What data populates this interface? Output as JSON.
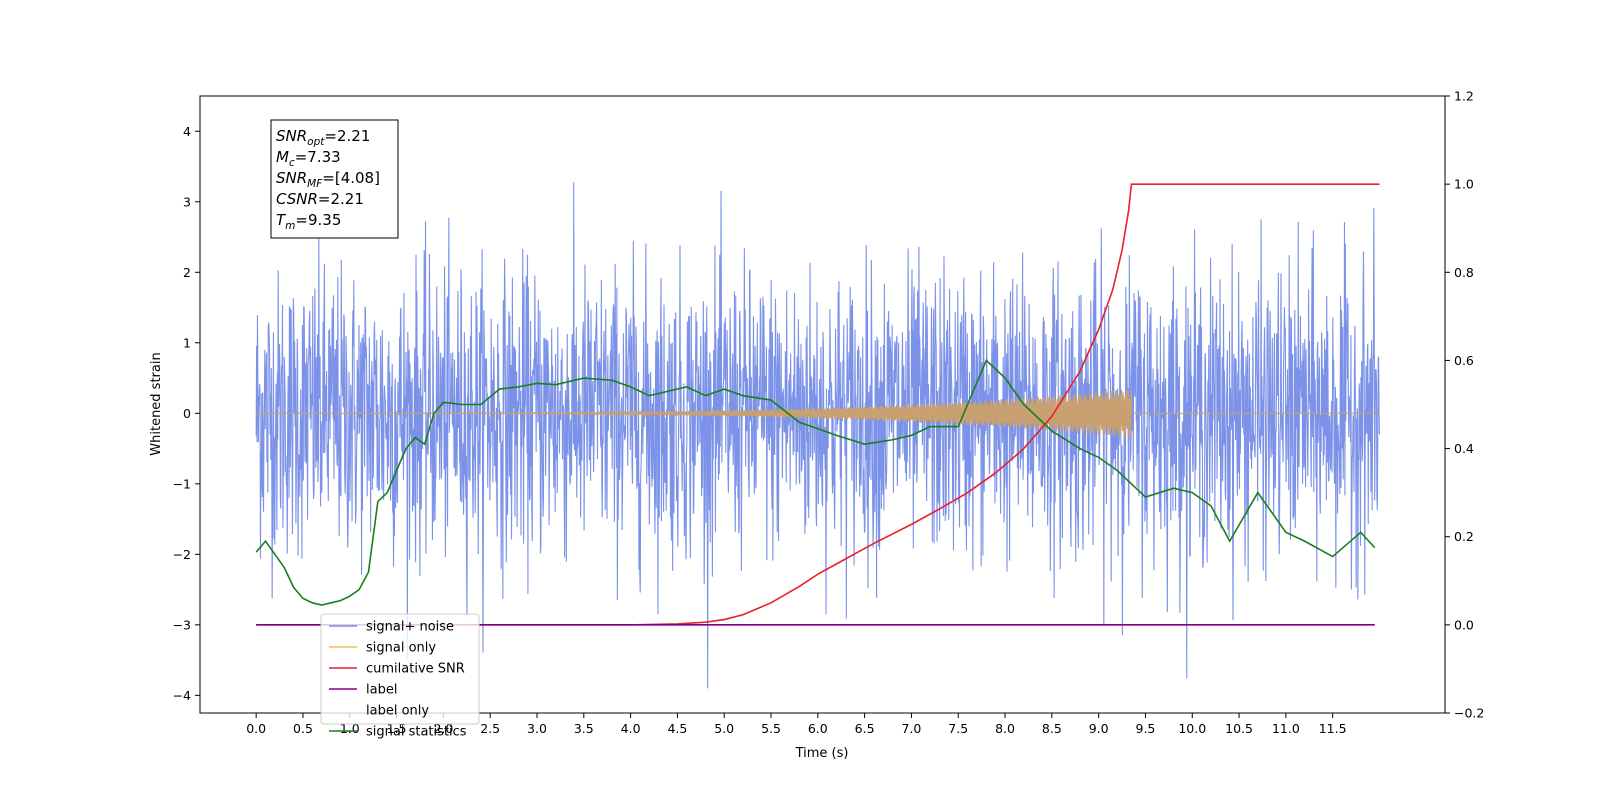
{
  "chart_data": {
    "type": "line",
    "xlabel": "Time (s)",
    "ylabel": "Whitened strain",
    "xlim": [
      -0.6,
      12.7
    ],
    "ylim": [
      -4.25,
      4.5
    ],
    "y2lim": [
      -0.2,
      1.2
    ],
    "x_ticks": [
      0.0,
      0.5,
      1.0,
      1.5,
      2.0,
      2.5,
      3.0,
      3.5,
      4.0,
      4.5,
      5.0,
      5.5,
      6.0,
      6.5,
      7.0,
      7.5,
      8.0,
      8.5,
      9.0,
      9.5,
      10.0,
      10.5,
      11.0,
      11.5
    ],
    "x_tick_labels": [
      "0.0",
      "0.5",
      "1.0",
      "1.5",
      "2.0",
      "2.5",
      "3.0",
      "3.5",
      "4.0",
      "4.5",
      "5.0",
      "5.5",
      "6.0",
      "6.5",
      "7.0",
      "7.5",
      "8.0",
      "8.5",
      "9.0",
      "9.5",
      "10.0",
      "10.5",
      "11.0",
      "11.5"
    ],
    "y_ticks": [
      -4,
      -3,
      -2,
      -1,
      0,
      1,
      2,
      3,
      4
    ],
    "y_tick_labels": [
      "−4",
      "−3",
      "−2",
      "−1",
      "0",
      "1",
      "2",
      "3",
      "4"
    ],
    "y2_ticks": [
      -0.2,
      0.0,
      0.2,
      0.4,
      0.6,
      0.8,
      1.0,
      1.2
    ],
    "y2_tick_labels": [
      "−0.2",
      "0.0",
      "0.2",
      "0.4",
      "0.6",
      "0.8",
      "1.0",
      "1.2"
    ],
    "grid": false,
    "legend_position": "lower-left",
    "annotation_box": [
      {
        "base": "SNR",
        "sub": "opt",
        "value": "=2.21"
      },
      {
        "base": "M",
        "sub": "c",
        "value": "=7.33"
      },
      {
        "base": "SNR",
        "sub": "MF",
        "value": "=[4.08]"
      },
      {
        "base": "CSNR",
        "sub": "",
        "value": "=2.21"
      },
      {
        "base": "T",
        "sub": "m",
        "value": "=9.35"
      }
    ],
    "series": [
      {
        "name": "signal+ noise",
        "axis": "left",
        "color": "#7890e8",
        "kind": "noise",
        "x_range": [
          0.0,
          12.0
        ],
        "sigma": 1.0
      },
      {
        "name": "signal only",
        "axis": "left",
        "color": "#f5b860",
        "kind": "chirp",
        "x_range": [
          0.0,
          9.35
        ],
        "peak_amplitude": 0.35
      },
      {
        "name": "cumilative SNR",
        "axis": "right",
        "color": "#e8202a",
        "x": [
          0.0,
          4.0,
          4.5,
          4.8,
          5.0,
          5.2,
          5.5,
          5.8,
          6.0,
          6.3,
          6.6,
          7.0,
          7.3,
          7.6,
          7.9,
          8.2,
          8.5,
          8.8,
          9.0,
          9.15,
          9.25,
          9.32,
          9.35,
          12.0
        ],
        "y": [
          0.0,
          0.0,
          0.002,
          0.006,
          0.012,
          0.023,
          0.05,
          0.087,
          0.115,
          0.15,
          0.185,
          0.228,
          0.263,
          0.3,
          0.345,
          0.4,
          0.473,
          0.575,
          0.67,
          0.76,
          0.85,
          0.94,
          1.0,
          1.0
        ]
      },
      {
        "name": "label",
        "axis": "right",
        "color": "#800080",
        "x": [
          0.0,
          11.95
        ],
        "y": [
          0.0,
          0.0
        ]
      },
      {
        "name": "label only",
        "axis": "right",
        "color": "#800080",
        "hidden": true,
        "x": [],
        "y": []
      },
      {
        "name": "signal statistics",
        "axis": "right",
        "color": "#1a7f1a",
        "x": [
          0.0,
          0.1,
          0.2,
          0.3,
          0.4,
          0.5,
          0.6,
          0.7,
          0.8,
          0.9,
          1.0,
          1.1,
          1.2,
          1.3,
          1.4,
          1.5,
          1.6,
          1.7,
          1.8,
          1.9,
          2.0,
          2.2,
          2.4,
          2.6,
          2.8,
          3.0,
          3.2,
          3.5,
          3.8,
          4.0,
          4.2,
          4.4,
          4.6,
          4.8,
          5.0,
          5.2,
          5.5,
          5.8,
          6.0,
          6.2,
          6.5,
          6.8,
          7.0,
          7.2,
          7.5,
          7.8,
          8.0,
          8.2,
          8.5,
          8.8,
          9.0,
          9.2,
          9.5,
          9.8,
          10.0,
          10.2,
          10.4,
          10.7,
          11.0,
          11.2,
          11.5,
          11.8,
          11.95
        ],
        "y": [
          0.165,
          0.19,
          0.16,
          0.13,
          0.085,
          0.06,
          0.05,
          0.045,
          0.05,
          0.055,
          0.065,
          0.08,
          0.12,
          0.28,
          0.3,
          0.35,
          0.4,
          0.425,
          0.41,
          0.48,
          0.505,
          0.5,
          0.5,
          0.535,
          0.54,
          0.548,
          0.545,
          0.56,
          0.555,
          0.54,
          0.52,
          0.53,
          0.54,
          0.52,
          0.535,
          0.52,
          0.51,
          0.46,
          0.445,
          0.43,
          0.41,
          0.42,
          0.43,
          0.45,
          0.45,
          0.6,
          0.56,
          0.5,
          0.44,
          0.4,
          0.38,
          0.35,
          0.29,
          0.31,
          0.3,
          0.27,
          0.19,
          0.3,
          0.21,
          0.19,
          0.155,
          0.21,
          0.175
        ]
      }
    ]
  }
}
